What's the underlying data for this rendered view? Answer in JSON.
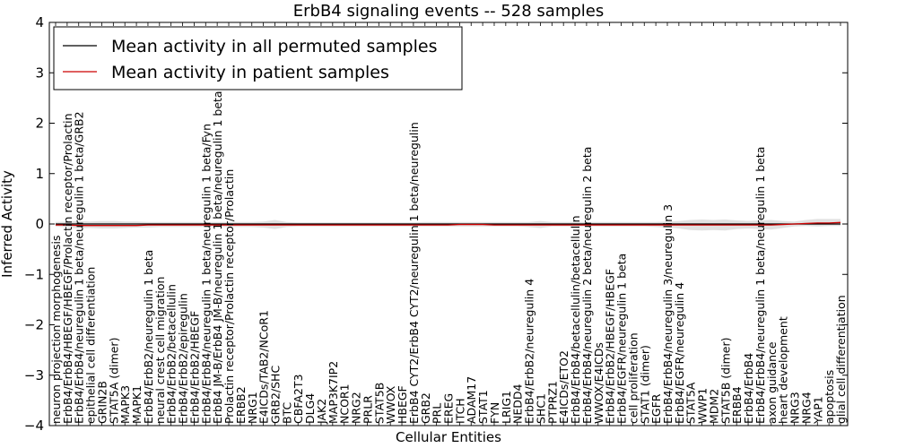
{
  "chart_data": {
    "type": "line",
    "title": "ErbB4 signaling events -- 528 samples",
    "xlabel": "Cellular Entities",
    "ylabel": "Inferred Activity",
    "ylim": [
      -4,
      4
    ],
    "yticks": [
      "4",
      "3",
      "2",
      "1",
      "0",
      "−1",
      "−2",
      "−3",
      "−4"
    ],
    "grid": false,
    "legend_position": "top-left",
    "legend": [
      {
        "label": "Mean activity in all permuted samples",
        "color": "#000000"
      },
      {
        "label": "Mean activity in patient samples",
        "color": "#cc0000"
      }
    ],
    "categories": [
      "neuron projection morphogenesis",
      "ErbB4/ErbB4/HBEGF/HBEGF/Prolactin receptor/Prolactin",
      "ErbB4/ErbB4/neuregulin 1 beta/neuregulin 1 beta/GRB2",
      "epithelial cell differentiation",
      "GRIN2B",
      "STAT5A (dimer)",
      "MAPK3",
      "MAPK1",
      "ErbB4/ErbB2/neuregulin 1 beta",
      "neural crest cell migration",
      "ErbB4/ErbB2/betacellulin",
      "ErbB4/ErbB2/epiregulin",
      "ErbB4/ErbB2/HBEGF",
      "ErbB4/ErbB4/neuregulin 1 beta/neuregulin 1 beta/Fyn",
      "ErbB4 JM-B/ErbB4 JM-B/neuregulin 1 beta/neuregulin 1 beta",
      "Prolactin receptor/Prolactin receptor/Prolactin",
      "ERBB2",
      "NRG1",
      "E4ICDs/TAB2/NCoR1",
      "GRB2/SHC",
      "BTC",
      "CBFA2T3",
      "DLG4",
      "JAK2",
      "MAP3K7IP2",
      "NCOR1",
      "NRG2",
      "PRLR",
      "STAT5B",
      "WWOX",
      "HBEGF",
      "ErbB4 CYT2/ErbB4 CYT2/neuregulin 1 beta/neuregulin",
      "GRB2",
      "PRL",
      "EREG",
      "ITCH",
      "ADAM17",
      "STAT1",
      "FYN",
      "LRIG1",
      "NEDD4",
      "ErbB4/ErbB2/neuregulin 4",
      "SHC1",
      "PTPRZ1",
      "E4ICDs/ETO2",
      "ErbB4/ErbB4/betacellulin/betacellulin",
      "ErbB4/ErbB4/neuregulin 2 beta/neuregulin 2 beta",
      "WWOX/E4ICDs",
      "ErbB4/ErbB2/HBEGF/HBEGF",
      "ErbB4/EGFR/neuregulin 1 beta",
      "cell proliferation",
      "STAT1 (dimer)",
      "EGFR",
      "ErbB4/ErbB4/neuregulin 3/neuregulin 3",
      "ErbB4/EGFR/neuregulin 4",
      "STAT5A",
      "WWP1",
      "MDM2",
      "STAT5B (dimer)",
      "ERBB4",
      "ErbB4/ErbB4",
      "ErbB4/ErbB4/neuregulin 1 beta/neuregulin 1 beta",
      "axon guidance",
      "heart development",
      "NRG3",
      "NRG4",
      "YAP1",
      "apoptosis",
      "glial cell differentiation"
    ],
    "series": [
      {
        "name": "Mean activity in all permuted samples",
        "color": "#000000",
        "values": [
          0,
          0,
          0,
          0,
          0,
          0,
          0,
          0,
          0,
          0,
          0,
          0,
          0,
          0,
          0,
          0,
          0,
          0,
          0,
          0,
          0,
          0,
          0,
          0,
          0,
          0,
          0,
          0,
          0,
          0,
          0,
          0,
          0,
          0,
          0,
          0,
          0,
          0,
          0,
          0,
          0,
          0,
          0,
          0,
          0,
          0,
          0,
          0,
          0,
          0,
          0,
          0,
          0,
          0,
          0,
          0,
          0,
          0,
          0,
          0,
          0,
          0,
          0,
          0,
          0,
          0,
          0,
          0,
          0
        ]
      },
      {
        "name": "Mean activity in patient samples",
        "color": "#cc0000",
        "values": [
          -0.02,
          -0.02,
          -0.03,
          -0.03,
          -0.03,
          -0.03,
          -0.03,
          -0.03,
          -0.02,
          -0.02,
          -0.02,
          -0.02,
          -0.02,
          -0.02,
          -0.02,
          -0.02,
          -0.02,
          -0.02,
          -0.02,
          -0.02,
          -0.02,
          -0.02,
          -0.02,
          -0.02,
          -0.02,
          -0.02,
          -0.02,
          -0.02,
          -0.02,
          -0.02,
          -0.02,
          -0.02,
          -0.02,
          -0.02,
          -0.02,
          -0.01,
          -0.01,
          -0.01,
          -0.02,
          -0.02,
          -0.02,
          -0.02,
          -0.02,
          -0.02,
          -0.02,
          -0.02,
          -0.02,
          -0.02,
          -0.02,
          -0.02,
          -0.02,
          -0.02,
          -0.02,
          -0.02,
          -0.02,
          -0.02,
          -0.02,
          -0.02,
          -0.02,
          -0.02,
          -0.02,
          -0.02,
          -0.02,
          -0.01,
          0.0,
          0.01,
          0.02,
          0.02,
          0.03
        ]
      }
    ],
    "spread_band": {
      "color": "#c8c8c8",
      "upper": [
        0.04,
        0.05,
        0.06,
        0.05,
        0.06,
        0.06,
        0.05,
        0.05,
        0.04,
        0.04,
        0.04,
        0.04,
        0.04,
        0.04,
        0.04,
        0.04,
        0.04,
        0.04,
        0.05,
        0.08,
        0.04,
        0.03,
        0.03,
        0.03,
        0.03,
        0.03,
        0.03,
        0.03,
        0.03,
        0.03,
        0.03,
        0.03,
        0.04,
        0.04,
        0.04,
        0.04,
        0.04,
        0.04,
        0.04,
        0.04,
        0.04,
        0.04,
        0.06,
        0.04,
        0.04,
        0.04,
        0.04,
        0.04,
        0.04,
        0.04,
        0.04,
        0.04,
        0.04,
        0.05,
        0.06,
        0.08,
        0.09,
        0.08,
        0.09,
        0.07,
        0.06,
        0.07,
        0.08,
        0.06,
        0.05,
        0.08,
        0.1,
        0.1,
        0.1
      ],
      "lower": [
        -0.05,
        -0.07,
        -0.09,
        -0.08,
        -0.09,
        -0.09,
        -0.08,
        -0.07,
        -0.07,
        -0.06,
        -0.06,
        -0.06,
        -0.06,
        -0.06,
        -0.06,
        -0.06,
        -0.06,
        -0.06,
        -0.07,
        -0.1,
        -0.06,
        -0.05,
        -0.05,
        -0.05,
        -0.05,
        -0.05,
        -0.05,
        -0.05,
        -0.05,
        -0.05,
        -0.05,
        -0.05,
        -0.05,
        -0.05,
        -0.05,
        -0.05,
        -0.05,
        -0.05,
        -0.05,
        -0.05,
        -0.05,
        -0.06,
        -0.08,
        -0.05,
        -0.05,
        -0.05,
        -0.05,
        -0.05,
        -0.05,
        -0.05,
        -0.05,
        -0.05,
        -0.06,
        -0.07,
        -0.09,
        -0.12,
        -0.13,
        -0.12,
        -0.13,
        -0.1,
        -0.09,
        -0.1,
        -0.11,
        -0.08,
        -0.05,
        -0.04,
        -0.05,
        -0.04,
        -0.04
      ]
    }
  }
}
